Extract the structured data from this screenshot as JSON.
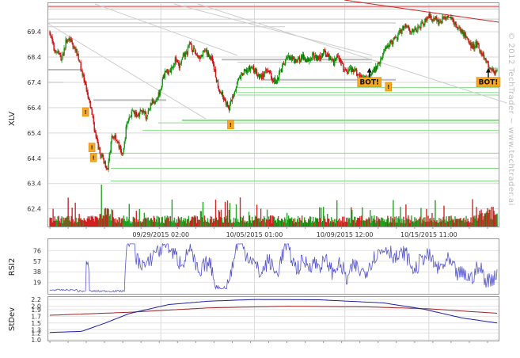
{
  "chart_data": [
    {
      "type": "candlestick",
      "symbol_label": "XLV",
      "y_ticks": [
        "69.4",
        "68.4",
        "67.4",
        "66.4",
        "65.4",
        "64.4",
        "63.4",
        "62.4"
      ],
      "ylim": [
        61.7,
        70.5
      ],
      "x_tick_labels": [
        "09/29/2015 02:00",
        "10/05/2015 01:00",
        "10/09/2015 12:00",
        "10/15/2015 11:00"
      ],
      "close_anchors": [
        [
          0,
          69.4
        ],
        [
          5,
          68.7
        ],
        [
          10,
          68.6
        ],
        [
          15,
          68.3
        ],
        [
          20,
          69.0
        ],
        [
          25,
          69.1
        ],
        [
          30,
          68.8
        ],
        [
          35,
          68.5
        ],
        [
          42,
          67.6
        ],
        [
          48,
          66.8
        ],
        [
          53,
          66.2
        ],
        [
          58,
          65.2
        ],
        [
          63,
          64.6
        ],
        [
          68,
          64.3
        ],
        [
          73,
          64.0
        ],
        [
          78,
          65.2
        ],
        [
          82,
          65.3
        ],
        [
          88,
          64.8
        ],
        [
          92,
          64.5
        ],
        [
          97,
          65.8
        ],
        [
          103,
          66.2
        ],
        [
          110,
          66.1
        ],
        [
          116,
          66.3
        ],
        [
          122,
          66.0
        ],
        [
          128,
          66.6
        ],
        [
          133,
          66.7
        ],
        [
          138,
          67.0
        ],
        [
          145,
          67.8
        ],
        [
          152,
          67.9
        ],
        [
          158,
          68.3
        ],
        [
          163,
          68.0
        ],
        [
          168,
          68.4
        ],
        [
          173,
          68.6
        ],
        [
          177,
          69.0
        ],
        [
          180,
          68.7
        ],
        [
          185,
          68.5
        ],
        [
          190,
          68.4
        ],
        [
          195,
          68.6
        ],
        [
          200,
          68.5
        ],
        [
          205,
          68.3
        ],
        [
          210,
          67.5
        ],
        [
          215,
          67.0
        ],
        [
          220,
          66.8
        ],
        [
          225,
          66.3
        ],
        [
          230,
          66.8
        ],
        [
          235,
          67.3
        ],
        [
          240,
          67.6
        ],
        [
          245,
          67.8
        ],
        [
          250,
          67.9
        ],
        [
          255,
          68.0
        ],
        [
          260,
          67.8
        ],
        [
          265,
          67.6
        ],
        [
          270,
          67.7
        ],
        [
          275,
          67.9
        ],
        [
          280,
          67.6
        ],
        [
          285,
          67.4
        ],
        [
          290,
          67.8
        ],
        [
          295,
          68.1
        ],
        [
          300,
          68.4
        ],
        [
          305,
          68.3
        ],
        [
          310,
          68.2
        ],
        [
          318,
          68.4
        ],
        [
          325,
          68.3
        ],
        [
          332,
          68.5
        ],
        [
          338,
          68.3
        ],
        [
          345,
          68.6
        ],
        [
          352,
          68.4
        ],
        [
          358,
          68.2
        ],
        [
          362,
          68.5
        ],
        [
          366,
          68.3
        ],
        [
          370,
          68.0
        ],
        [
          374,
          67.8
        ],
        [
          378,
          67.9
        ],
        [
          383,
          67.9
        ],
        [
          388,
          67.7
        ],
        [
          392,
          67.6
        ],
        [
          396,
          67.6
        ],
        [
          400,
          67.5
        ],
        [
          406,
          67.8
        ],
        [
          412,
          68.0
        ],
        [
          418,
          68.4
        ],
        [
          424,
          68.8
        ],
        [
          430,
          69.0
        ],
        [
          436,
          69.1
        ],
        [
          442,
          69.4
        ],
        [
          448,
          69.7
        ],
        [
          454,
          69.5
        ],
        [
          460,
          69.4
        ],
        [
          466,
          69.6
        ],
        [
          472,
          69.8
        ],
        [
          478,
          70.0
        ],
        [
          484,
          69.9
        ],
        [
          490,
          69.8
        ],
        [
          496,
          69.9
        ],
        [
          502,
          70.0
        ],
        [
          508,
          69.8
        ],
        [
          514,
          69.6
        ],
        [
          520,
          69.4
        ],
        [
          526,
          69.1
        ],
        [
          532,
          68.8
        ],
        [
          538,
          68.9
        ],
        [
          544,
          68.6
        ],
        [
          550,
          68.2
        ],
        [
          555,
          68.0
        ],
        [
          560,
          67.8
        ]
      ],
      "buy_markers": [
        {
          "label": "!",
          "index": 45,
          "price": 66.4
        },
        {
          "label": "!",
          "index": 53,
          "price": 65.0
        },
        {
          "label": "!",
          "index": 55,
          "price": 64.6
        },
        {
          "label": "!",
          "index": 228,
          "price": 65.9
        },
        {
          "label": "BOT!",
          "index": 403,
          "price": 67.6
        },
        {
          "label": "!",
          "index": 427,
          "price": 67.4
        },
        {
          "label": "BOT!",
          "index": 553,
          "price": 67.6
        }
      ],
      "candle_count": 565,
      "colors": {
        "up": "#119911",
        "down": "#cc1111",
        "grid": "#d9d9d9",
        "frame": "#999999"
      }
    },
    {
      "type": "line",
      "name_label": "RSI2",
      "y_ticks": [
        "76",
        "57",
        "38",
        "19"
      ],
      "ylim": [
        0,
        95
      ],
      "color": "#5555cc"
    },
    {
      "type": "line",
      "name_label": "StDev",
      "y_ticks": [
        "2.2",
        "2.0",
        "1.9",
        "1.7",
        "1.5",
        "1.3",
        "1.2",
        "1.0"
      ],
      "ylim": [
        1.0,
        2.25
      ],
      "series_colors": [
        "#1f1f9f",
        "#992222"
      ]
    }
  ],
  "watermark": "© 2012 TechTrader ~ www.techtrader.ai"
}
